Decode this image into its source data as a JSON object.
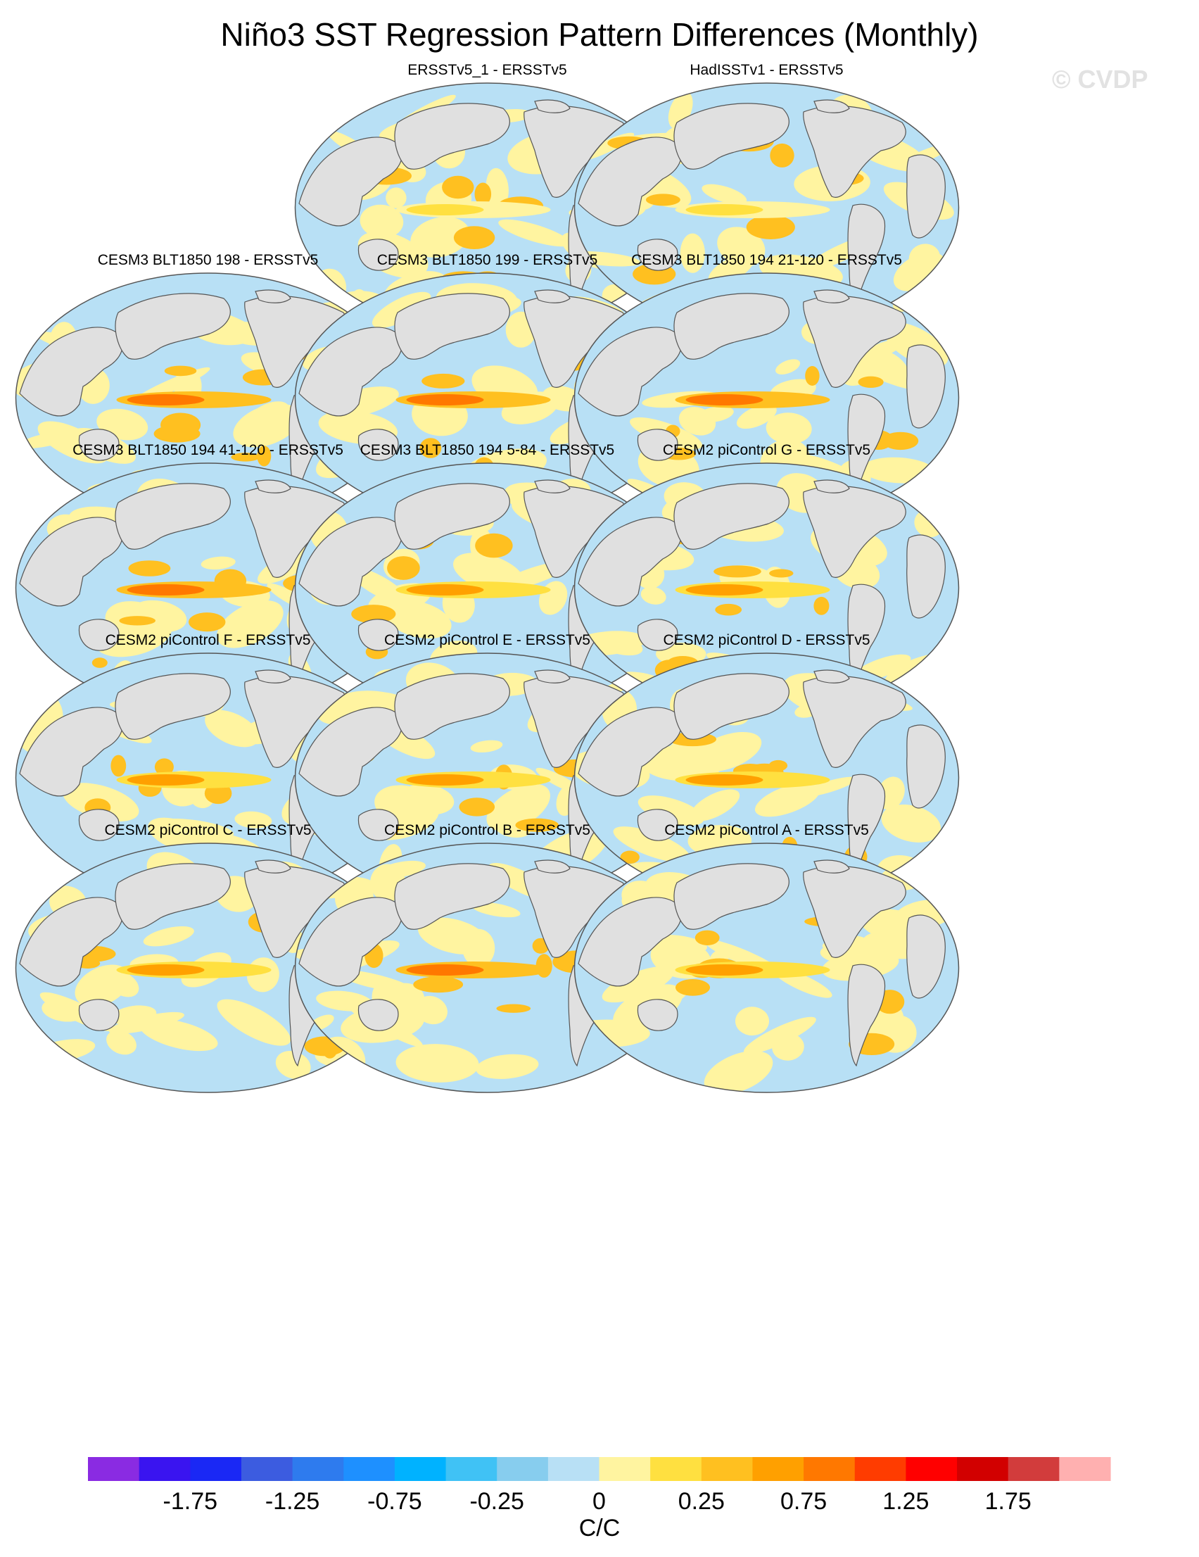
{
  "title": "Niño3 SST Regression Pattern Differences (Monthly)",
  "watermark": "© CVDP",
  "chart_data": {
    "type": "heatmap",
    "title": "Niño3 SST Regression Pattern Differences (Monthly)",
    "projection": "global map (Robinson-like ellipse), Pacific-centered",
    "panels": [
      {
        "name": "ERSSTv5_1 - ERSSTv5",
        "equatorial_pacific_max": 0.1
      },
      {
        "name": "HadISSTv1 - ERSSTv5",
        "equatorial_pacific_max": 0.1
      },
      {
        "name": "CESM3 BLT1850 198 - ERSSTv5",
        "equatorial_pacific_max": 0.75
      },
      {
        "name": "CESM3 BLT1850 199 - ERSSTv5",
        "equatorial_pacific_max": 0.75
      },
      {
        "name": "CESM3 BLT1850 194 21-120 - ERSSTv5",
        "equatorial_pacific_max": 0.75
      },
      {
        "name": "CESM3 BLT1850 194 41-120 - ERSSTv5",
        "equatorial_pacific_max": 0.75
      },
      {
        "name": "CESM3 BLT1850 194 5-84 - ERSSTv5",
        "equatorial_pacific_max": 0.6
      },
      {
        "name": "CESM2 piControl G - ERSSTv5",
        "equatorial_pacific_max": 0.5
      },
      {
        "name": "CESM2 piControl F - ERSSTv5",
        "equatorial_pacific_max": 0.5
      },
      {
        "name": "CESM2 piControl E - ERSSTv5",
        "equatorial_pacific_max": 0.5
      },
      {
        "name": "CESM2 piControl D - ERSSTv5",
        "equatorial_pacific_max": 0.5
      },
      {
        "name": "CESM2 piControl C - ERSSTv5",
        "equatorial_pacific_max": 0.6
      },
      {
        "name": "CESM2 piControl B - ERSSTv5",
        "equatorial_pacific_max": 0.75
      },
      {
        "name": "CESM2 piControl A - ERSSTv5",
        "equatorial_pacific_max": 0.6
      }
    ],
    "colorbar": {
      "levels": [
        -2,
        -1.75,
        -1.5,
        -1.25,
        -1,
        -0.75,
        -0.5,
        -0.25,
        -0.1,
        0,
        0.1,
        0.25,
        0.5,
        0.75,
        1,
        1.25,
        1.5,
        1.75,
        2
      ],
      "tick_labels": [
        "-1.75",
        "-1.25",
        "-0.75",
        "-0.25",
        "0",
        "0.25",
        "0.75",
        "1.25",
        "1.75"
      ],
      "colors": [
        "#8a2be2",
        "#3a14f0",
        "#1a28f5",
        "#3c5ce0",
        "#2e7bee",
        "#1e90ff",
        "#00b2ff",
        "#40c2f5",
        "#87cdee",
        "#b8e0f5",
        "#fff4a0",
        "#ffe040",
        "#ffc020",
        "#ffa000",
        "#ff7800",
        "#ff3c00",
        "#ff0000",
        "#d20000",
        "#d23c3c",
        "#ffb0b0"
      ],
      "label": "C/C"
    },
    "land_color": "#e0e0e0",
    "coastline_color": "#555555"
  }
}
